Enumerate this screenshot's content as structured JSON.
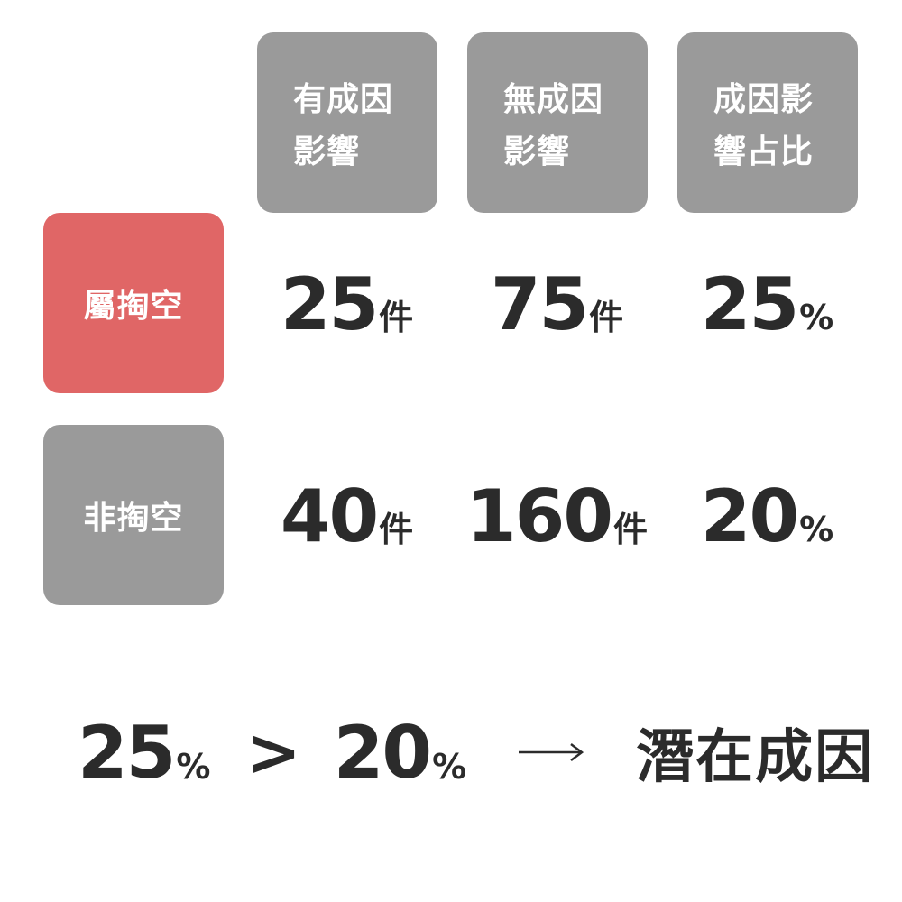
{
  "columns": [
    {
      "line1": "有成因",
      "line2": "影響"
    },
    {
      "line1": "無成因",
      "line2": "影響"
    },
    {
      "line1": "成因影",
      "line2": "響占比"
    }
  ],
  "rows": [
    {
      "label": "屬掏空",
      "highlight_color": "#e06666",
      "cells": [
        {
          "value": "25",
          "unit": "件"
        },
        {
          "value": "75",
          "unit": "件"
        },
        {
          "value": "25",
          "unit": "%"
        }
      ]
    },
    {
      "label": "非掏空",
      "highlight_color": "#9a9a9a",
      "cells": [
        {
          "value": "40",
          "unit": "件"
        },
        {
          "value": "160",
          "unit": "件"
        },
        {
          "value": "20",
          "unit": "%"
        }
      ]
    }
  ],
  "conclusion": {
    "left_value": "25",
    "left_unit": "%",
    "operator": ">",
    "right_value": "20",
    "right_unit": "%",
    "arrow_icon": "long-right-arrow",
    "result": "潛在成因"
  },
  "colors": {
    "header_gray": "#9a9a9a",
    "highlight_red": "#e06666",
    "text_dark": "#2b2b2b"
  }
}
